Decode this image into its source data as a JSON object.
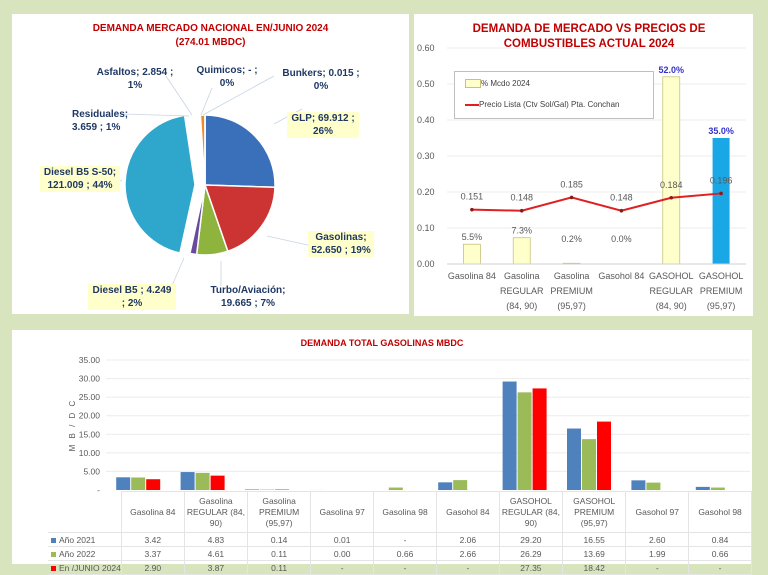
{
  "pie": {
    "title_line1": "DEMANDA MERCADO NACIONAL  EN/JUNIO 2024",
    "title_line2": "(274.01 MBDC)",
    "labels": {
      "glp": [
        "GLP;  69.912 ;",
        "26%"
      ],
      "gasolinas": [
        "Gasolinas;",
        "52.650 ; 19%"
      ],
      "turbo": [
        "Turbo/Aviación;",
        "19.665 ; 7%"
      ],
      "dieselb5": [
        "Diesel B5 ;  4.249",
        "; 2%"
      ],
      "diesels50": [
        "Diesel B5 S-50;",
        "121.009 ; 44%"
      ],
      "residuales": [
        "Residuales;",
        "3.659 ; 1%"
      ],
      "asfaltos": [
        "Asfaltos;  2.854 ;",
        "1%"
      ],
      "quimicos": [
        "Quimicos;  -  ;",
        "0%"
      ],
      "bunkers": [
        "Bunkers;  0.015 ;",
        "0%"
      ]
    }
  },
  "combo": {
    "title_line1": "DEMANDA DE MERCADO VS PRECIOS DE",
    "title_line2": "COMBUSTIBLES ACTUAL 2024",
    "legend_bar": "% Mcdo 2024",
    "legend_line": "Precio Lista (Ctv Sol/Gal) Pta. Conchan",
    "cat_lines": [
      [
        "Gasolina 84"
      ],
      [
        "Gasolina",
        "REGULAR",
        "(84, 90)"
      ],
      [
        "Gasolina",
        "PREMIUM",
        "(95,97)"
      ],
      [
        "Gasohol 84"
      ],
      [
        "GASOHOL",
        "REGULAR",
        "(84, 90)"
      ],
      [
        "GASOHOL",
        "PREMIUM",
        "(95,97)"
      ]
    ]
  },
  "table": {
    "row_labels": [
      "Año 2021",
      "Año 2022",
      "En /JUNIO 2024"
    ],
    "headers": [
      [
        "Gasolina 84"
      ],
      [
        "Gasolina",
        "REGULAR (84,",
        "90)"
      ],
      [
        "Gasolina",
        "PREMIUM",
        "(95,97)"
      ],
      [
        "Gasolina 97"
      ],
      [
        "Gasolina 98"
      ],
      [
        "Gasohol 84"
      ],
      [
        "GASOHOL",
        "REGULAR (84,",
        "90)"
      ],
      [
        "GASOHOL",
        "PREMIUM",
        "(95,97)"
      ],
      [
        "Gasohol 97"
      ],
      [
        "Gasohol 98"
      ]
    ],
    "rows": [
      [
        "3.42",
        "4.83",
        "0.14",
        "0.01",
        "-",
        "2.06",
        "29.20",
        "16.55",
        "2.60",
        "0.84"
      ],
      [
        "3.37",
        "4.61",
        "0.11",
        "0.00",
        "0.66",
        "2.66",
        "26.29",
        "13.69",
        "1.99",
        "0.66"
      ],
      [
        "2.90",
        "3.87",
        "0.11",
        "-",
        "-",
        "-",
        "27.35",
        "18.42",
        "-",
        "-"
      ]
    ]
  },
  "chart_data": [
    {
      "type": "pie",
      "title": "DEMANDA MERCADO NACIONAL  EN/JUNIO 2024 (274.01 MBDC)",
      "unit": "MBDC",
      "slices": [
        {
          "name": "GLP",
          "value": 69.912,
          "pct": 26,
          "color": "#3a6fba"
        },
        {
          "name": "Gasolinas",
          "value": 52.65,
          "pct": 19,
          "color": "#cc3333"
        },
        {
          "name": "Turbo/Aviación",
          "value": 19.665,
          "pct": 7,
          "color": "#8fb43e"
        },
        {
          "name": "Diesel B5",
          "value": 4.249,
          "pct": 2,
          "color": "#6a4a9c"
        },
        {
          "name": "Diesel B5 S-50",
          "value": 121.009,
          "pct": 44,
          "color": "#2fa6cc",
          "exploded": true
        },
        {
          "name": "Residuales",
          "value": 3.659,
          "pct": 1,
          "color": "#ffffff"
        },
        {
          "name": "Asfaltos",
          "value": 2.854,
          "pct": 1,
          "color": "#ee8a2a"
        },
        {
          "name": "Quimicos",
          "value": 0,
          "pct": 0,
          "color": "#888888"
        },
        {
          "name": "Bunkers",
          "value": 0.015,
          "pct": 0,
          "color": "#8b1a1a"
        }
      ]
    },
    {
      "type": "bar",
      "title": "DEMANDA DE MERCADO VS PRECIOS DE COMBUSTIBLES ACTUAL 2024",
      "categories": [
        "Gasolina 84",
        "Gasolina REGULAR (84, 90)",
        "Gasolina PREMIUM (95,97)",
        "Gasohol 84",
        "GASOHOL REGULAR (84, 90)",
        "GASOHOL PREMIUM (95,97)"
      ],
      "ylim": [
        0,
        0.6
      ],
      "yticks": [
        "0.00",
        "0.10",
        "0.20",
        "0.30",
        "0.40",
        "0.50",
        "0.60"
      ],
      "legend": "top-left",
      "series": [
        {
          "name": "% Mcdo 2024",
          "kind": "bar",
          "values": [
            0.055,
            0.073,
            0.002,
            0.0,
            0.52,
            0.35
          ],
          "labels": [
            "5.5%",
            "7.3%",
            "0.2%",
            "0.0%",
            "52.0%",
            "35.0%"
          ],
          "colors": [
            "#ffffcc",
            "#ffffcc",
            "#ffffcc",
            "#ffffcc",
            "#ffffcc",
            "#1aa7e6"
          ]
        },
        {
          "name": "Precio Lista (Ctv Sol/Gal) Pta. Conchan",
          "kind": "line",
          "values": [
            0.151,
            0.148,
            0.185,
            0.148,
            0.184,
            0.196
          ],
          "labels": [
            "0.151",
            "0.148",
            "0.185",
            "0.148",
            "0.184",
            "0.196"
          ],
          "color": "#e02020"
        }
      ]
    },
    {
      "type": "bar",
      "title": "DEMANDA  TOTAL GASOLINAS MBDC",
      "ylabel": "M B / D C",
      "ylim": [
        0,
        35
      ],
      "yticks": [
        "-",
        "5.00",
        "10.00",
        "15.00",
        "20.00",
        "25.00",
        "30.00",
        "35.00"
      ],
      "categories": [
        "Gasolina 84",
        "Gasolina REGULAR (84, 90)",
        "Gasolina PREMIUM (95,97)",
        "Gasolina 97",
        "Gasolina 98",
        "Gasohol 84",
        "GASOHOL REGULAR (84, 90)",
        "GASOHOL PREMIUM (95,97)",
        "Gasohol 97",
        "Gasohol 98"
      ],
      "series": [
        {
          "name": "Año 2021",
          "color": "#4f81bd",
          "values": [
            3.42,
            4.83,
            0.14,
            0.01,
            null,
            2.06,
            29.2,
            16.55,
            2.6,
            0.84
          ]
        },
        {
          "name": "Año 2022",
          "color": "#9bbb59",
          "values": [
            3.37,
            4.61,
            0.11,
            0.0,
            0.66,
            2.66,
            26.29,
            13.69,
            1.99,
            0.66
          ]
        },
        {
          "name": "En /JUNIO 2024",
          "color": "#ff0000",
          "values": [
            2.9,
            3.87,
            0.11,
            null,
            null,
            null,
            27.35,
            18.42,
            null,
            null
          ]
        }
      ]
    }
  ]
}
